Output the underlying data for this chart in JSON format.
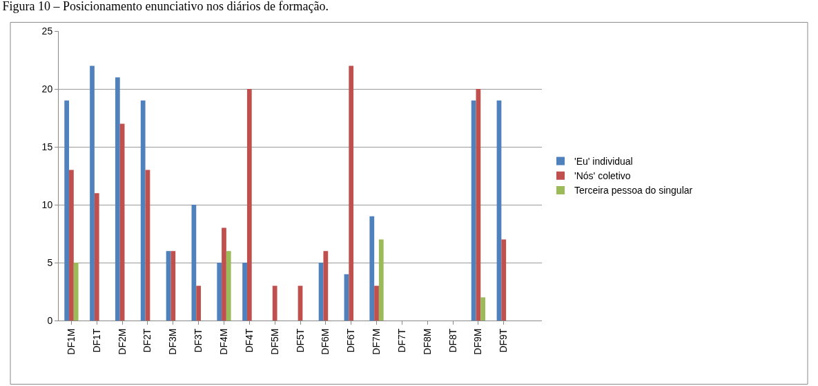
{
  "chart_data": {
    "type": "bar",
    "title": "Figura 10 – Posicionamento enunciativo nos diários de formação.",
    "categories": [
      "DF1M",
      "DF1T",
      "DF2M",
      "DF2T",
      "DF3M",
      "DF3T",
      "DF4M",
      "DF4T",
      "DF5M",
      "DF5T",
      "DF6M",
      "DF6T",
      "DF7M",
      "DF7T",
      "DF8M",
      "DF8T",
      "DF9M",
      "DF9T",
      null
    ],
    "series": [
      {
        "name": "'Eu' individual",
        "color": "#4f81bd",
        "values": [
          19,
          22,
          21,
          19,
          6,
          10,
          5,
          5,
          0,
          0,
          5,
          4,
          9,
          0,
          0,
          0,
          19,
          19,
          null
        ]
      },
      {
        "name": "'Nós' coletivo",
        "color": "#c0504d",
        "values": [
          13,
          11,
          17,
          13,
          6,
          3,
          8,
          20,
          3,
          3,
          6,
          22,
          3,
          0,
          0,
          0,
          20,
          7,
          null
        ]
      },
      {
        "name": "Terceira pessoa do singular",
        "color": "#9bbb59",
        "values": [
          5,
          0,
          0,
          0,
          0,
          0,
          6,
          0,
          0,
          0,
          0,
          0,
          7,
          0,
          0,
          0,
          2,
          0,
          null
        ]
      }
    ],
    "ylim": [
      0,
      25
    ],
    "yticks": [
      0,
      5,
      10,
      15,
      20,
      25
    ],
    "grid": "y",
    "legend": "right"
  }
}
